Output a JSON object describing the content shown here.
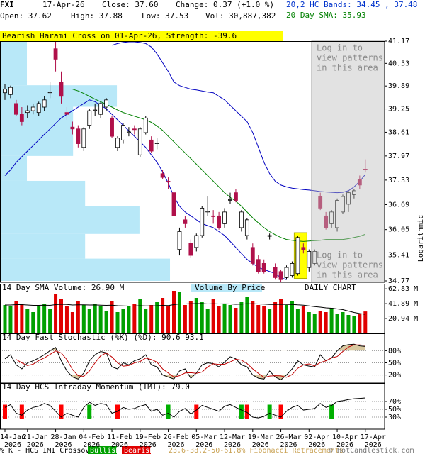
{
  "header": {
    "symbol": "FXI",
    "date": "17-Apr-26",
    "close": "Close: 37.60",
    "change": "Change: 0.37 (+1.0 %)",
    "open": "Open: 37.62",
    "high": "High: 37.88",
    "low": "Low: 37.53",
    "volume": "Vol: 30,887,382"
  },
  "footer": {
    "crossover": "% K - HCS IMI Crossover,",
    "bullish": "Bullish",
    "bearish": "Bearish",
    "fibonacci": "23.6-38.2-50-61.8% Fibonacci Retracements",
    "credit": "© HotCandlestick.com"
  },
  "chart_data": [
    {
      "type": "candlestick",
      "annotation": "Bearish Harami Cross on 01-Apr-26, Strength: -39.6",
      "pattern_candles": [
        52,
        53
      ],
      "categories": [
        "14-Jan",
        null,
        null,
        null,
        "21-Jan",
        null,
        null,
        null,
        null,
        "28-Jan",
        null,
        null,
        null,
        null,
        "04-Feb",
        null,
        null,
        null,
        null,
        "11-Feb",
        null,
        null,
        null,
        null,
        "19-Feb",
        null,
        null,
        null,
        null,
        "26-Feb",
        null,
        null,
        null,
        null,
        "05-Mar",
        null,
        null,
        null,
        null,
        "12-Mar",
        null,
        null,
        null,
        null,
        "19-Mar",
        null,
        null,
        null,
        null,
        "26-Mar",
        null,
        null,
        null,
        null,
        "02-Apr",
        null,
        null,
        null,
        null,
        "10-Apr",
        null,
        null,
        null,
        null,
        "17-Apr"
      ],
      "year_label": "2026",
      "open": [
        39.7,
        39.65,
        39.4,
        39.1,
        39.15,
        39.2,
        39.15,
        39.3,
        39.7,
        40.95,
        40.0,
        39.15,
        38.75,
        38.7,
        38.2,
        38.8,
        39.2,
        39.1,
        39.3,
        39.0,
        38.2,
        38.4,
        38.6,
        38.7,
        38.0,
        38.6,
        38.4,
        38.3,
        37.5,
        37.3,
        37.0,
        35.55,
        36.3,
        35.7,
        35.6,
        35.9,
        36.5,
        36.4,
        36.4,
        36.2,
        36.8,
        37.0,
        36.1,
        35.9,
        35.6,
        35.3,
        35.2,
        35.88,
        35.1,
        35.0,
        34.85,
        34.9,
        34.95,
        35.6,
        35.1,
        35.2,
        36.9,
        36.4,
        36.2,
        36.1,
        36.5,
        36.7,
        36.95,
        37.35,
        37.62
      ],
      "high": [
        39.95,
        39.9,
        39.5,
        39.3,
        39.35,
        39.4,
        39.45,
        39.6,
        40.0,
        41.15,
        40.3,
        39.3,
        38.9,
        38.8,
        38.75,
        39.25,
        39.4,
        39.45,
        39.55,
        39.05,
        38.5,
        38.85,
        38.75,
        38.8,
        38.75,
        39.05,
        38.5,
        38.45,
        37.6,
        37.4,
        37.05,
        36.1,
        36.4,
        35.8,
        35.95,
        36.65,
        36.9,
        36.55,
        36.5,
        36.6,
        37.0,
        37.1,
        36.55,
        36.35,
        35.7,
        35.4,
        35.3,
        35.95,
        35.2,
        35.05,
        35.15,
        35.25,
        35.9,
        35.7,
        35.55,
        35.55,
        37.0,
        36.5,
        36.55,
        36.85,
        36.95,
        37.05,
        37.1,
        37.45,
        37.88
      ],
      "low": [
        39.5,
        39.55,
        39.05,
        38.8,
        39.0,
        39.1,
        39.05,
        39.2,
        39.55,
        40.3,
        39.4,
        38.95,
        38.55,
        38.2,
        38.1,
        38.7,
        39.05,
        39.0,
        39.2,
        38.45,
        38.1,
        38.3,
        38.5,
        38.55,
        37.95,
        38.55,
        38.05,
        38.15,
        37.35,
        37.1,
        36.35,
        35.4,
        36.1,
        35.35,
        35.5,
        35.85,
        36.4,
        36.2,
        36.05,
        36.1,
        36.7,
        36.75,
        36.0,
        35.8,
        35.15,
        34.95,
        34.95,
        35.8,
        34.8,
        34.72,
        34.8,
        34.85,
        34.9,
        35.45,
        35.0,
        35.15,
        36.55,
        36.05,
        36.1,
        36.0,
        36.45,
        36.5,
        36.85,
        37.1,
        37.53
      ],
      "close": [
        39.8,
        39.85,
        39.1,
        38.9,
        39.2,
        39.3,
        39.4,
        39.5,
        39.72,
        40.65,
        39.6,
        39.1,
        38.7,
        38.3,
        38.7,
        39.2,
        39.22,
        39.4,
        39.5,
        38.5,
        38.45,
        38.8,
        38.62,
        38.68,
        38.7,
        39.0,
        38.1,
        38.32,
        37.4,
        37.28,
        36.4,
        36.0,
        36.2,
        35.4,
        35.9,
        36.6,
        36.52,
        36.38,
        36.1,
        36.5,
        36.82,
        36.8,
        36.5,
        36.3,
        35.2,
        35.0,
        35.0,
        35.9,
        34.85,
        34.8,
        35.1,
        35.2,
        35.85,
        35.55,
        35.5,
        35.5,
        36.6,
        36.1,
        36.5,
        36.8,
        36.9,
        37.0,
        37.05,
        37.2,
        37.6
      ],
      "up_color": "#ffffff",
      "down_color": "#b0104a",
      "bands": {
        "label": "20,2 HC Bands: 34.45 , 37.48",
        "color": "#0000c0",
        "upper": [
          null,
          null,
          null,
          null,
          null,
          null,
          null,
          null,
          null,
          null,
          null,
          null,
          null,
          null,
          null,
          null,
          null,
          null,
          null,
          41.05,
          41.1,
          41.13,
          41.15,
          41.15,
          41.13,
          41.1,
          41.0,
          40.8,
          40.55,
          40.3,
          40.0,
          39.9,
          39.85,
          39.8,
          39.78,
          39.75,
          39.72,
          39.7,
          39.6,
          39.5,
          39.35,
          39.2,
          39.05,
          38.9,
          38.6,
          38.2,
          37.8,
          37.5,
          37.3,
          37.2,
          37.15,
          37.12,
          37.1,
          37.08,
          37.07,
          37.05,
          37.03,
          37.02,
          37.01,
          37.0,
          37.01,
          37.05,
          37.15,
          37.3,
          37.48
        ],
        "lower": [
          37.45,
          37.6,
          37.8,
          37.95,
          38.1,
          38.25,
          38.4,
          38.55,
          38.7,
          38.85,
          39.0,
          39.1,
          39.2,
          39.3,
          39.4,
          39.5,
          39.45,
          39.35,
          39.25,
          39.1,
          38.95,
          38.8,
          38.65,
          38.5,
          38.35,
          38.2,
          38.0,
          37.8,
          37.55,
          37.25,
          36.9,
          36.65,
          36.5,
          36.4,
          36.3,
          36.2,
          36.15,
          36.1,
          36.0,
          35.9,
          35.75,
          35.6,
          35.45,
          35.3,
          35.2,
          35.1,
          35.05,
          35.0,
          34.95,
          34.85,
          34.8,
          null,
          null,
          null,
          null,
          null,
          null,
          null,
          null,
          null,
          null,
          null,
          null,
          null,
          null
        ]
      },
      "sma": {
        "label": "20 Day SMA: 35.93",
        "color": "#008000",
        "values": [
          null,
          null,
          null,
          null,
          null,
          null,
          null,
          null,
          null,
          null,
          null,
          null,
          39.8,
          39.75,
          39.68,
          39.6,
          39.52,
          39.45,
          39.38,
          39.3,
          39.22,
          39.15,
          39.1,
          39.05,
          39.0,
          38.95,
          38.88,
          38.78,
          38.66,
          38.5,
          38.35,
          38.2,
          38.05,
          37.9,
          37.75,
          37.6,
          37.45,
          37.3,
          37.15,
          37.0,
          36.88,
          36.78,
          36.65,
          36.5,
          36.35,
          36.22,
          36.1,
          36.0,
          35.92,
          35.85,
          35.8,
          35.78,
          35.76,
          35.75,
          35.76,
          35.77,
          35.78,
          35.8,
          35.8,
          35.8,
          35.8,
          35.82,
          35.85,
          35.88,
          35.93
        ]
      },
      "volume_by_price": {
        "label": "Volume By Price",
        "color": "#b8e8f8",
        "bins": [
          41.17,
          40.49,
          39.91,
          39.31,
          37.97,
          37.31,
          36.65,
          35.94,
          35.32,
          34.77
        ],
        "values": [
          105,
          105,
          456,
          285,
          105,
          332,
          544,
          332,
          663
        ],
        "xlim": [
          0,
          1500
        ]
      },
      "locked_text": [
        "Log in to",
        "view patterns",
        "in this area"
      ],
      "log_scale": true,
      "axis_label": "Logarithmic",
      "ylim": [
        34.77,
        41.17
      ],
      "yticks": [
        41.17,
        40.53,
        39.89,
        39.25,
        38.61,
        37.97,
        37.33,
        36.69,
        36.05,
        35.41,
        34.77
      ]
    },
    {
      "type": "bar",
      "title": "14 Day SMA Volume: 26.90 M",
      "label": "DAILY CHART",
      "values": [
        40,
        38,
        45,
        42,
        35,
        30,
        38,
        42,
        35,
        55,
        48,
        38,
        30,
        45,
        40,
        35,
        42,
        38,
        32,
        45,
        30,
        35,
        38,
        42,
        48,
        35,
        40,
        44,
        50,
        38,
        60,
        58,
        40,
        45,
        50,
        44,
        35,
        48,
        38,
        42,
        40,
        36,
        44,
        52,
        46,
        40,
        38,
        35,
        44,
        48,
        40,
        46,
        35,
        38,
        30,
        28,
        32,
        30,
        36,
        28,
        30,
        26,
        24,
        27,
        30.89
      ],
      "up_color": "#00a000",
      "down_color": "#e00000",
      "sma": {
        "color": "#000000",
        "values": [
          40,
          40,
          40.5,
          40.5,
          40,
          39.5,
          39.5,
          39.8,
          39.5,
          40.5,
          41,
          40.8,
          40,
          40.2,
          40.2,
          40,
          40.1,
          39.8,
          39.5,
          39.8,
          39,
          38.8,
          38.5,
          38.6,
          39,
          38.7,
          38.8,
          39,
          39.5,
          39.3,
          40.5,
          41.5,
          41.5,
          41.7,
          42,
          42,
          41.5,
          41.8,
          41.5,
          41.6,
          41.5,
          41,
          41.2,
          41.8,
          41.8,
          41.5,
          41.2,
          40.8,
          40.8,
          41,
          40.8,
          40.8,
          40.2,
          39.8,
          38.8,
          37.8,
          37,
          36,
          35.5,
          34.5,
          33.5,
          31.5,
          29.5,
          28,
          26.9
        ]
      },
      "ylim": [
        0,
        70
      ],
      "yticks": [
        {
          "value": 62.83,
          "label": "62.83 M"
        },
        {
          "value": 41.89,
          "label": "41.89 M"
        },
        {
          "value": 20.94,
          "label": "20.94 M"
        }
      ]
    },
    {
      "type": "line",
      "title": "14 Day Fast Stochastic (%K) (%D): 90.6 93.1",
      "series": [
        {
          "color": "#000000",
          "values": [
            60,
            70,
            45,
            35,
            50,
            55,
            62,
            70,
            80,
            88,
            55,
            30,
            15,
            10,
            25,
            55,
            70,
            78,
            75,
            40,
            35,
            50,
            45,
            55,
            60,
            70,
            45,
            40,
            20,
            15,
            10,
            30,
            35,
            12,
            25,
            45,
            50,
            48,
            40,
            52,
            65,
            60,
            45,
            40,
            20,
            12,
            10,
            30,
            15,
            8,
            20,
            35,
            55,
            45,
            42,
            40,
            70,
            55,
            62,
            80,
            92,
            95,
            96,
            92,
            90.6
          ]
        },
        {
          "color": "#c00000",
          "values": [
            null,
            null,
            58.3,
            50,
            43.3,
            46.7,
            55.7,
            62.3,
            70.7,
            79.3,
            74.3,
            57.7,
            33.3,
            18.3,
            16.7,
            30,
            50,
            67.7,
            74.3,
            64.3,
            50,
            41.7,
            43.3,
            50,
            53.3,
            61.7,
            58.3,
            51.7,
            35,
            25,
            15,
            18.3,
            25,
            25.7,
            24,
            27.3,
            40,
            47.7,
            46,
            46.7,
            52.3,
            59,
            56.7,
            48.3,
            35,
            24,
            14,
            17.3,
            18.3,
            17.7,
            14.3,
            21,
            36.7,
            45,
            47.3,
            42.3,
            50.7,
            55,
            62.3,
            65.7,
            78,
            89,
            94.3,
            94.3,
            93.1
          ]
        }
      ],
      "shade_color": "#d8c8a0",
      "shade_above": 80,
      "shade_below": 20,
      "ylim": [
        0,
        100
      ],
      "yticks": [
        {
          "value": 80,
          "label": "80%"
        },
        {
          "value": 50,
          "label": "50%"
        },
        {
          "value": 20,
          "label": "20%"
        }
      ],
      "grid": true
    },
    {
      "type": "line",
      "title": "14 Day HCS Intraday Momentum (IMI): 79.0",
      "series": [
        {
          "color": "#000000",
          "values": [
            55,
            62,
            40,
            35,
            48,
            55,
            58,
            65,
            60,
            45,
            30,
            40,
            35,
            30,
            55,
            68,
            60,
            65,
            62,
            40,
            45,
            55,
            50,
            52,
            58,
            62,
            45,
            50,
            35,
            40,
            30,
            45,
            52,
            38,
            48,
            60,
            55,
            50,
            45,
            58,
            62,
            55,
            48,
            42,
            30,
            28,
            32,
            40,
            35,
            30,
            45,
            55,
            60,
            48,
            50,
            52,
            65,
            55,
            60,
            70,
            72,
            75,
            77,
            78,
            79
          ]
        }
      ],
      "bullish_at": [
        15,
        29,
        42,
        47,
        58
      ],
      "bearish_at": [
        0,
        3,
        10,
        20,
        34,
        43,
        49
      ],
      "bullish_color": "#00b000",
      "bearish_color": "#ff0000",
      "ylim": [
        0,
        100
      ],
      "yticks": [
        {
          "value": 70,
          "label": "70%"
        },
        {
          "value": 50,
          "label": "50%"
        },
        {
          "value": 30,
          "label": "30%"
        }
      ],
      "grid": true
    }
  ]
}
